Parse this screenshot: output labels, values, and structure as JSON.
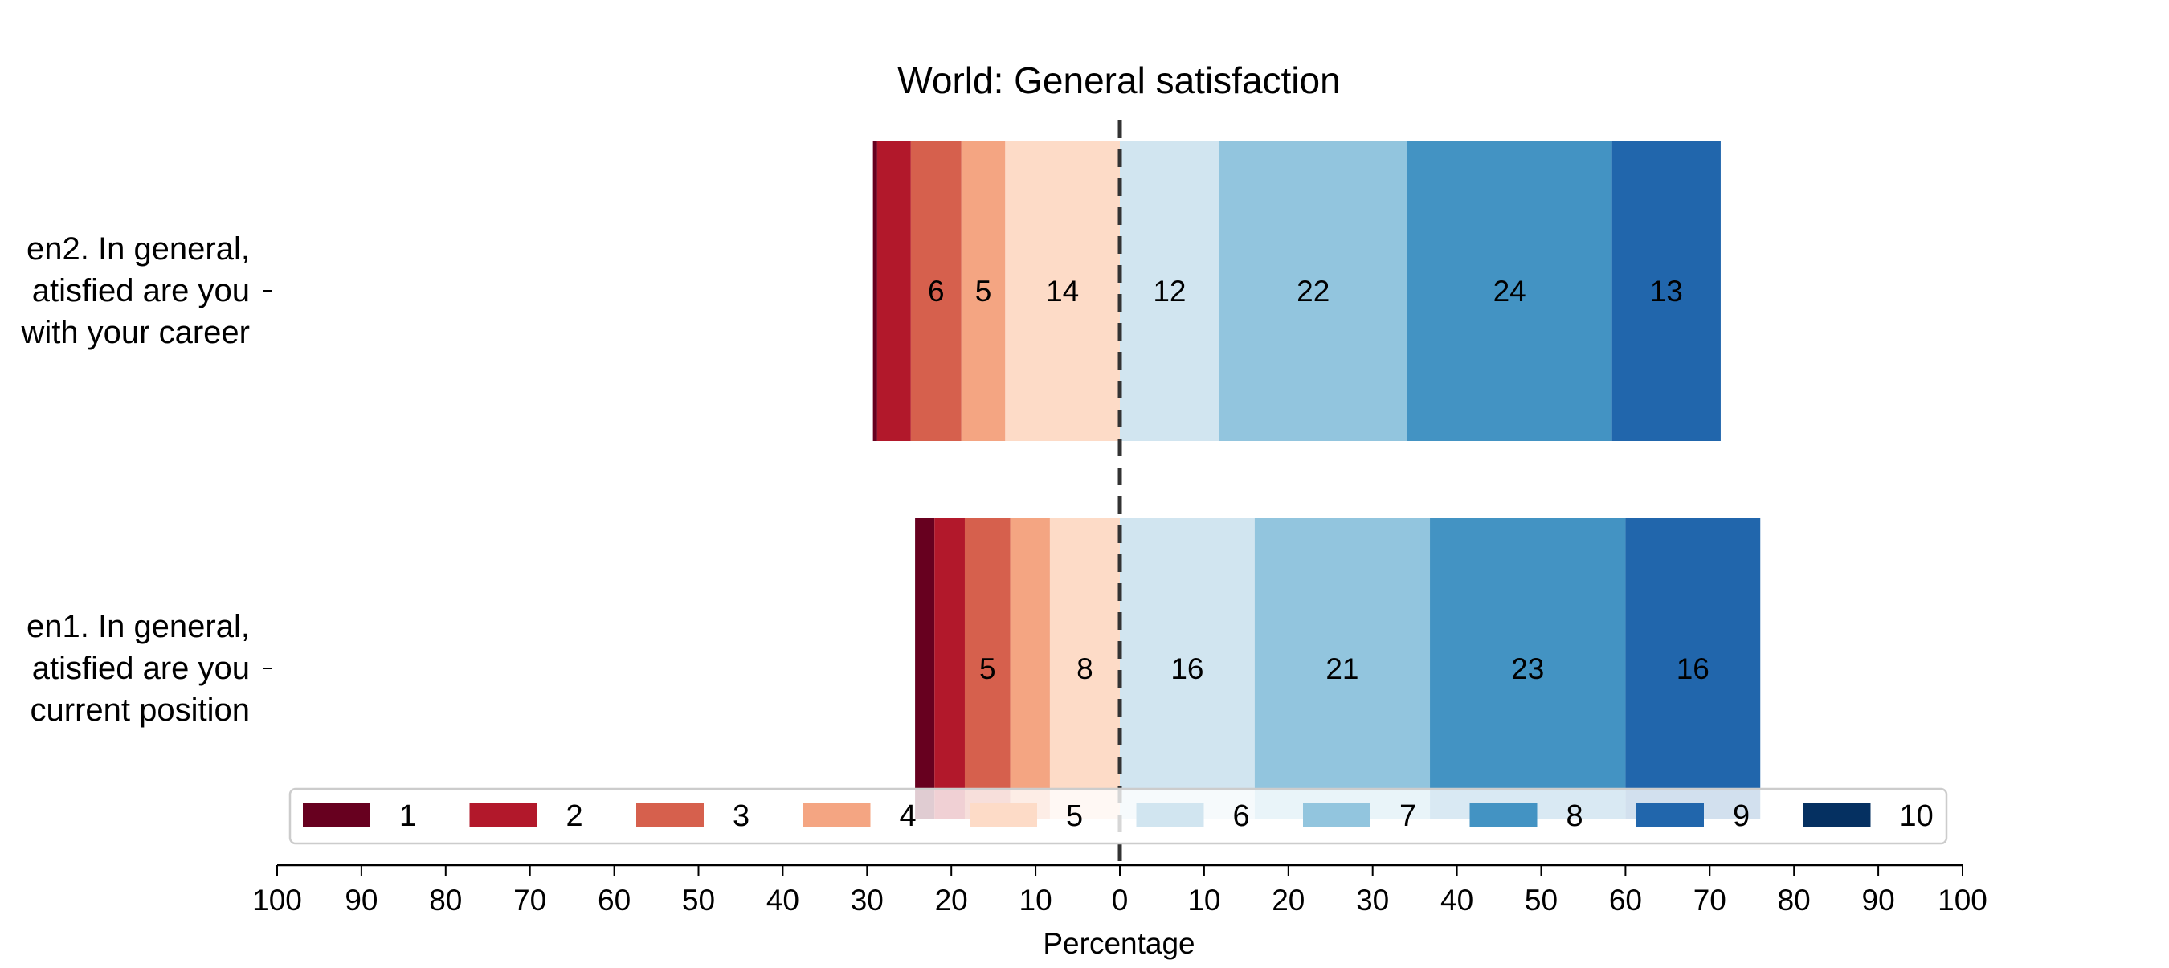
{
  "chart_data": {
    "type": "bar",
    "orientation": "horizontal",
    "stacking": "diverging",
    "title": "World: General satisfaction",
    "xlabel": "Percentage",
    "xlim": [
      -100,
      100
    ],
    "xticks": [
      "100",
      "90",
      "80",
      "70",
      "60",
      "50",
      "40",
      "30",
      "20",
      "10",
      "0",
      "10",
      "20",
      "30",
      "40",
      "50",
      "60",
      "70",
      "80",
      "90",
      "100"
    ],
    "categories": [
      "en2. In general,\natisfied are you\nwith your career",
      "en1. In general,\natisfied are you\ncurrent position"
    ],
    "series": [
      {
        "name": "1",
        "color": "#67001f",
        "values": [
          0.5,
          2.3
        ]
      },
      {
        "name": "2",
        "color": "#b2182b",
        "values": [
          4,
          3.6
        ]
      },
      {
        "name": "3",
        "color": "#d6604d",
        "values": [
          6,
          5.4
        ]
      },
      {
        "name": "4",
        "color": "#f4a582",
        "values": [
          5.2,
          4.7
        ]
      },
      {
        "name": "5",
        "color": "#fddbc7",
        "values": [
          13.6,
          8.3
        ]
      },
      {
        "name": "6",
        "color": "#d1e5f0",
        "values": [
          11.8,
          16
        ]
      },
      {
        "name": "7",
        "color": "#92c5de",
        "values": [
          22.3,
          20.8
        ]
      },
      {
        "name": "8",
        "color": "#4393c3",
        "values": [
          24.3,
          23.2
        ]
      },
      {
        "name": "9",
        "color": "#2166ac",
        "values": [
          12.9,
          16
        ]
      },
      {
        "name": "10",
        "color": "#053061",
        "values": [
          0,
          0
        ]
      }
    ],
    "data_labels": [
      [
        "",
        "",
        "6",
        "5",
        "14",
        "12",
        "22",
        "24",
        "13",
        ""
      ],
      [
        "",
        "",
        "5",
        "",
        "8",
        "16",
        "21",
        "23",
        "16",
        ""
      ]
    ],
    "legend_labels": [
      "1",
      "2",
      "3",
      "4",
      "5",
      "6",
      "7",
      "8",
      "9",
      "10"
    ],
    "center_line": "dashed",
    "legend_position": "bottom",
    "grid": false
  }
}
